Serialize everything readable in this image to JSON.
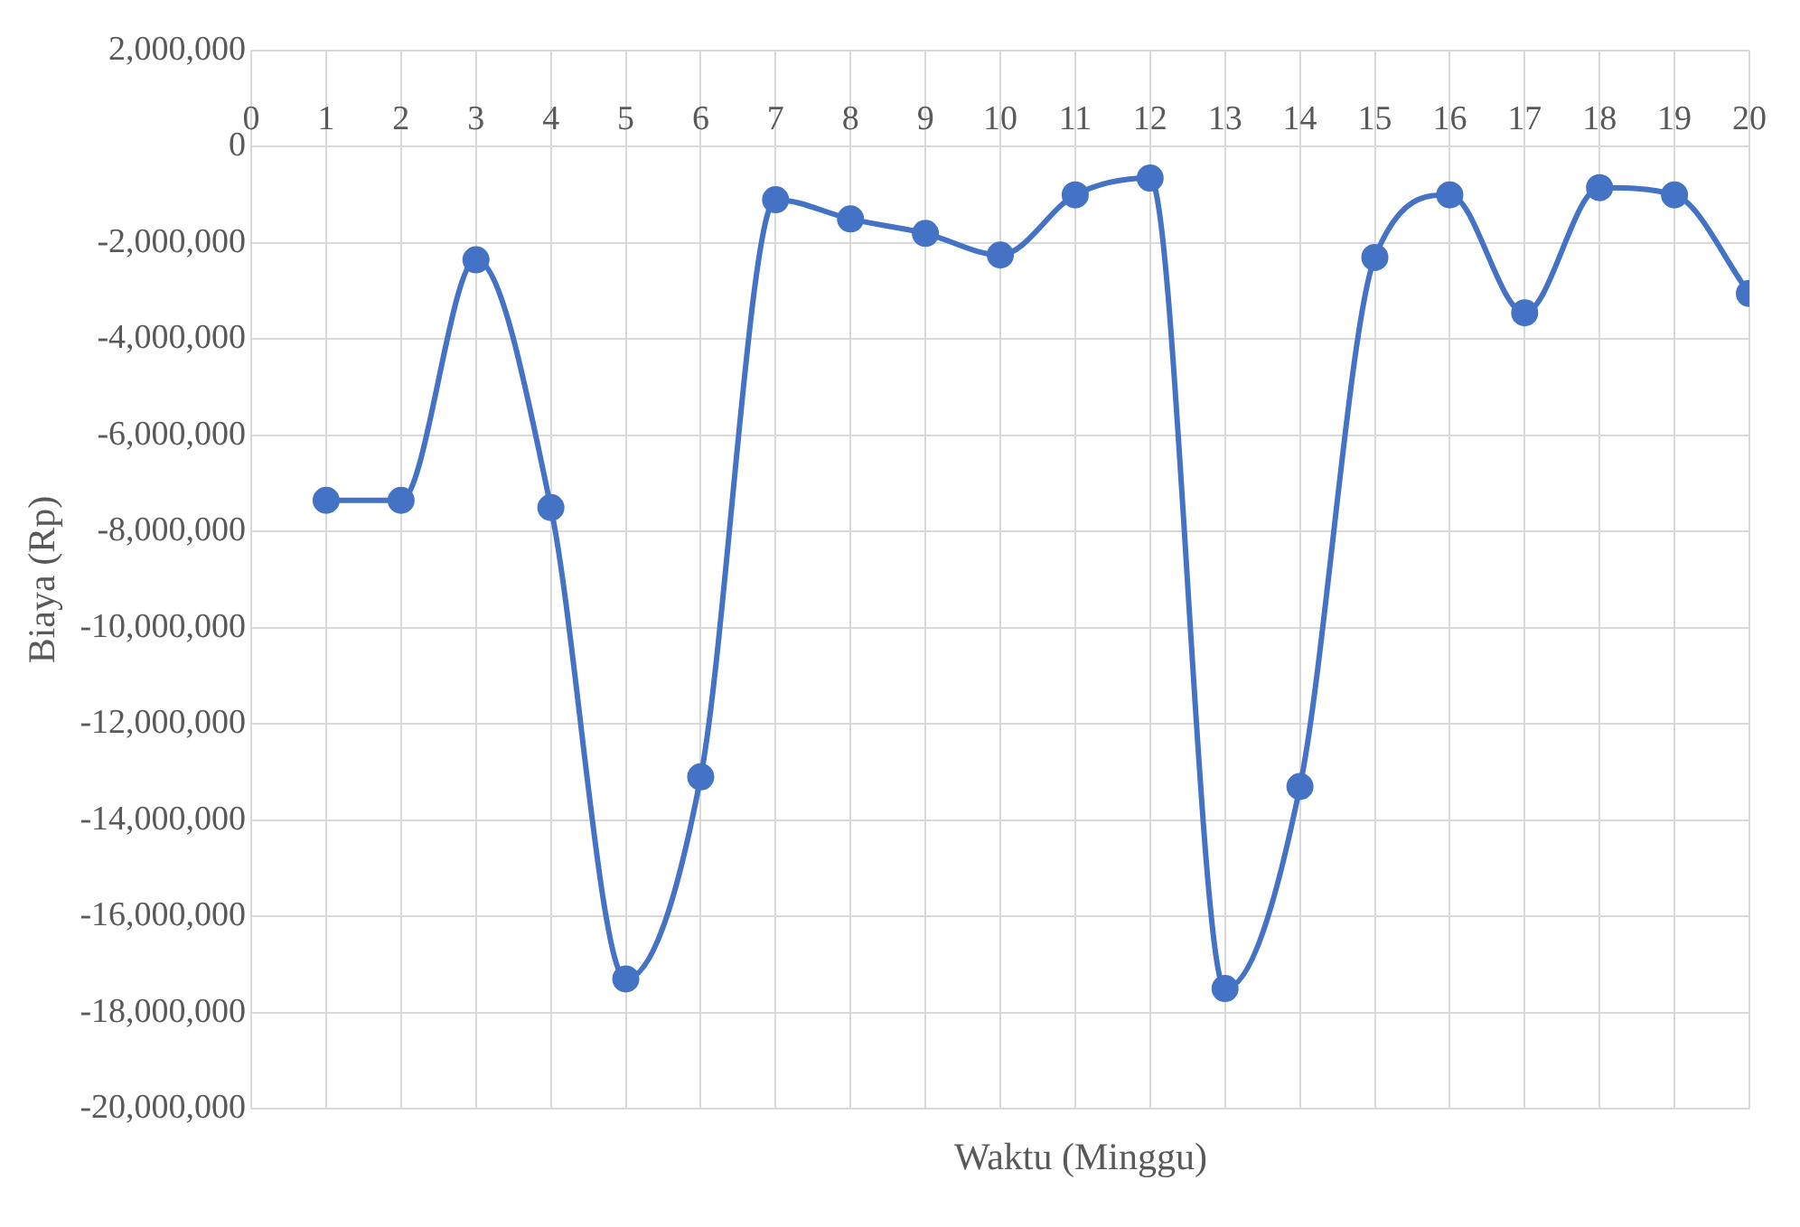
{
  "chart_data": {
    "type": "line",
    "xlabel": "Waktu (Minggu)",
    "ylabel": "Biaya (Rp)",
    "x": [
      1,
      2,
      3,
      4,
      5,
      6,
      7,
      8,
      9,
      10,
      11,
      12,
      13,
      14,
      15,
      16,
      17,
      18,
      19,
      20
    ],
    "series": [
      {
        "color": "#4472c4",
        "values": [
          -7350000,
          -7350000,
          -2350000,
          -7500000,
          -17300000,
          -13100000,
          -1100000,
          -1500000,
          -1800000,
          -2250000,
          -1000000,
          -650000,
          -17500000,
          -13300000,
          -2300000,
          -1000000,
          -3450000,
          -850000,
          -1000000,
          -3050000
        ]
      }
    ],
    "xlim": [
      0,
      20
    ],
    "xticks": [
      0,
      1,
      2,
      3,
      4,
      5,
      6,
      7,
      8,
      9,
      10,
      11,
      12,
      13,
      14,
      15,
      16,
      17,
      18,
      19,
      20
    ],
    "ylim": [
      -20000000,
      2000000
    ],
    "yticks": [
      {
        "value": -20000000,
        "label": "-20,000,000"
      },
      {
        "value": -18000000,
        "label": "-18,000,000"
      },
      {
        "value": -16000000,
        "label": "-16,000,000"
      },
      {
        "value": -14000000,
        "label": "-14,000,000"
      },
      {
        "value": -12000000,
        "label": "-12,000,000"
      },
      {
        "value": -10000000,
        "label": "-10,000,000"
      },
      {
        "value": -8000000,
        "label": "-8,000,000"
      },
      {
        "value": -6000000,
        "label": "-6,000,000"
      },
      {
        "value": -4000000,
        "label": "-4,000,000"
      },
      {
        "value": -2000000,
        "label": "-2,000,000"
      },
      0,
      {
        "value": 2000000,
        "label": "2,000,000"
      }
    ],
    "grid": true,
    "legend": false,
    "marker": "circle",
    "line_style": "solid"
  }
}
